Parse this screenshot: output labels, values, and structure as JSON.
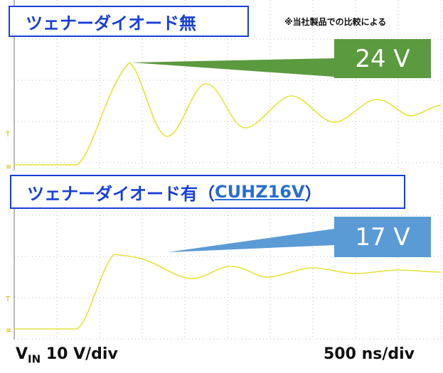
{
  "top_panel": {
    "title": "ツェナーダイオード無",
    "note": "※当社製品での比較による",
    "peak_label": "24 V"
  },
  "bottom_panel": {
    "title_before": "ツェナーダイオード有（",
    "title_link": "CUHZ16V",
    "title_after": "）",
    "peak_label": "17 V"
  },
  "footer": {
    "v_symbol": "V",
    "v_subscript": "IN",
    "v_scale": "10 V/div",
    "time_scale": "500 ns/div"
  }
}
